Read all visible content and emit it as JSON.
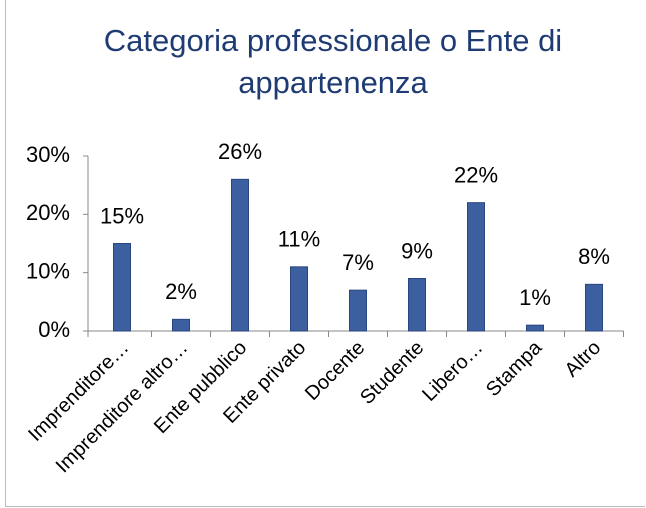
{
  "chart_data": {
    "type": "bar",
    "title": "Categoria professionale o Ente di appartenenza",
    "categories": [
      "Imprenditore…",
      "Imprenditore altro…",
      "Ente pubblico",
      "Ente privato",
      "Docente",
      "Studente",
      "Libero…",
      "Stampa",
      "Altro"
    ],
    "values": [
      15,
      2,
      26,
      11,
      7,
      9,
      22,
      1,
      8
    ],
    "value_labels": [
      "15%",
      "2%",
      "26%",
      "11%",
      "7%",
      "9%",
      "22%",
      "1%",
      "8%"
    ],
    "color": "#3c5fa0",
    "ylim": [
      0,
      30
    ],
    "yticks": [
      {
        "value": 0,
        "label": "0%"
      },
      {
        "value": 10,
        "label": "10%"
      },
      {
        "value": 20,
        "label": "20%"
      },
      {
        "value": 30,
        "label": "30%"
      }
    ],
    "grid": false
  }
}
